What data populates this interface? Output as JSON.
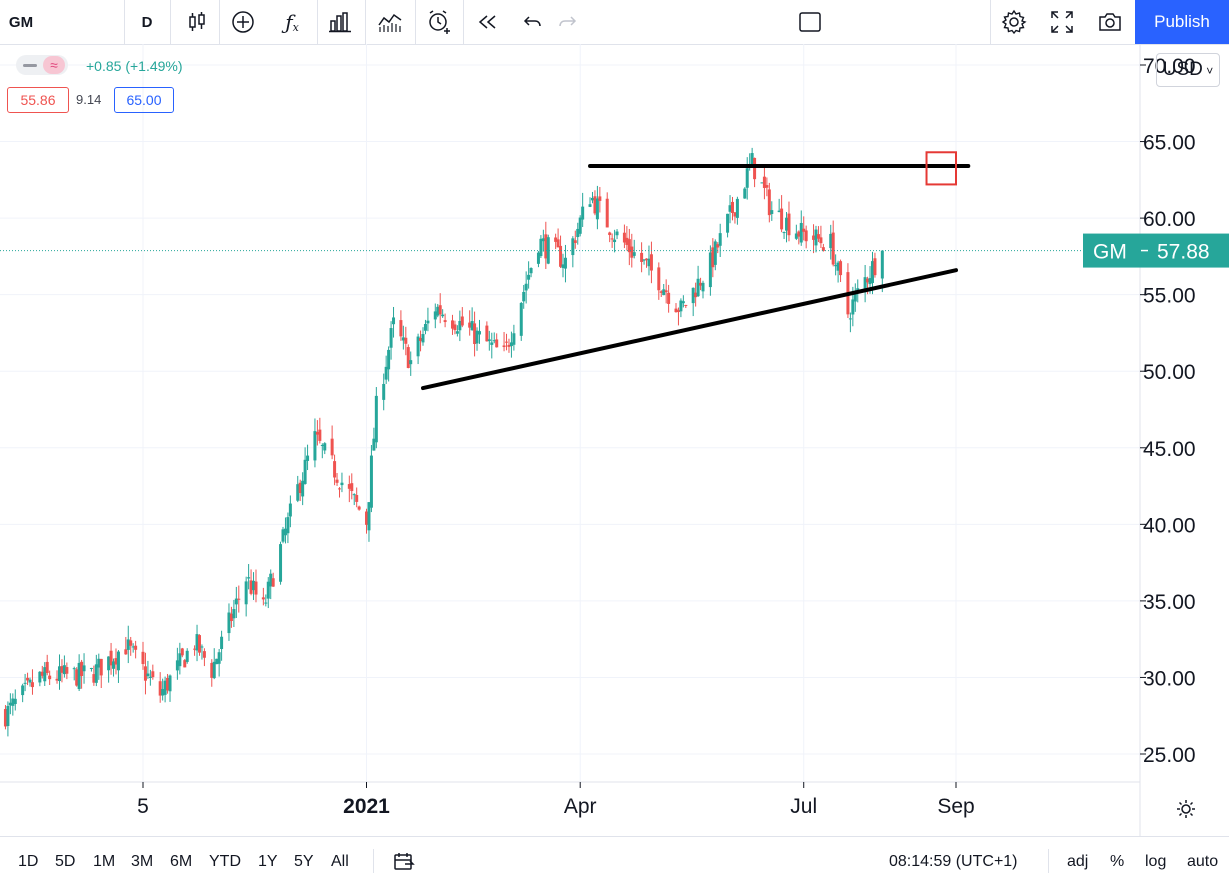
{
  "toolbar": {
    "symbol": "GM",
    "interval": "D",
    "publish_label": "Publish",
    "icons": [
      "bar-style-icon",
      "add-indicator-icon",
      "indicators-fx-icon",
      "financials-icon",
      "compare-icon",
      "alert-icon",
      "replay-icon",
      "undo-icon",
      "redo-icon",
      "layout-icon",
      "settings-icon",
      "fullscreen-icon",
      "snapshot-icon"
    ]
  },
  "legend": {
    "change": "+0.85 (+1.49%)",
    "box_left": "55.86",
    "middle": "9.14",
    "box_right": "65.00"
  },
  "currency": "USD",
  "price_tag": {
    "symbol": "GM",
    "price": "57.88"
  },
  "timeframes": [
    "1D",
    "5D",
    "1M",
    "3M",
    "6M",
    "YTD",
    "1Y",
    "5Y",
    "All"
  ],
  "clock": "08:14:59 (UTC+1)",
  "scale_options": [
    "adj",
    "%",
    "log",
    "auto"
  ],
  "colors": {
    "up": "#26a69a",
    "down": "#ef5350",
    "accent": "#2962ff",
    "trendline": "#000000",
    "target_box": "#e53935"
  },
  "chart_data": {
    "type": "candlestick",
    "symbol": "GM",
    "ylim": [
      22.5,
      73.5
    ],
    "yticks": [
      70,
      65,
      60,
      55,
      50,
      45,
      40,
      35,
      30,
      25
    ],
    "ytick_labels": [
      "70.00",
      "65.00",
      "60.00",
      "55.00",
      "50.00",
      "45.00",
      "40.00",
      "35.00",
      "30.00",
      "25.00"
    ],
    "x_labels": [
      {
        "label": "5",
        "date": "2020-10-05"
      },
      {
        "label": "2021",
        "date": "2021-01-04"
      },
      {
        "label": "Apr",
        "date": "2021-04-01"
      },
      {
        "label": "Jul",
        "date": "2021-07-01"
      },
      {
        "label": "Sep",
        "date": "2021-09-01"
      }
    ],
    "last_price": 57.88,
    "close_anchors": [
      [
        "2020-08-10",
        27.6
      ],
      [
        "2020-08-24",
        30.0
      ],
      [
        "2020-09-14",
        30.2
      ],
      [
        "2020-09-28",
        32.1
      ],
      [
        "2020-10-12",
        28.9
      ],
      [
        "2020-10-26",
        32.3
      ],
      [
        "2020-11-02",
        30.5
      ],
      [
        "2020-11-16",
        36.5
      ],
      [
        "2020-11-23",
        34.5
      ],
      [
        "2020-12-07",
        42.3
      ],
      [
        "2020-12-14",
        45.6
      ],
      [
        "2020-12-28",
        42.0
      ],
      [
        "2021-01-04",
        40.2
      ],
      [
        "2021-01-08",
        47.6
      ],
      [
        "2021-01-15",
        53.0
      ],
      [
        "2021-01-22",
        50.6
      ],
      [
        "2021-02-01",
        54.2
      ],
      [
        "2021-02-12",
        53.0
      ],
      [
        "2021-03-01",
        51.0
      ],
      [
        "2021-03-15",
        58.5
      ],
      [
        "2021-03-26",
        57.2
      ],
      [
        "2021-04-05",
        61.5
      ],
      [
        "2021-04-15",
        59.0
      ],
      [
        "2021-05-03",
        56.0
      ],
      [
        "2021-05-12",
        54.0
      ],
      [
        "2021-05-24",
        57.0
      ],
      [
        "2021-06-10",
        63.6
      ],
      [
        "2021-06-18",
        60.5
      ],
      [
        "2021-06-30",
        59.0
      ],
      [
        "2021-07-12",
        58.3
      ],
      [
        "2021-07-19",
        53.8
      ],
      [
        "2021-07-26",
        56.0
      ],
      [
        "2021-08-02",
        57.88
      ]
    ],
    "lines": [
      {
        "name": "resistance",
        "from": [
          "2021-04-05",
          63.4
        ],
        "to": [
          "2021-09-06",
          63.4
        ]
      },
      {
        "name": "support",
        "from": [
          "2021-01-27",
          48.9
        ],
        "to": [
          "2021-09-01",
          56.6
        ]
      }
    ],
    "target_box": {
      "from": [
        "2021-08-20",
        64.3
      ],
      "to": [
        "2021-09-01",
        62.2
      ]
    },
    "grid": true
  }
}
